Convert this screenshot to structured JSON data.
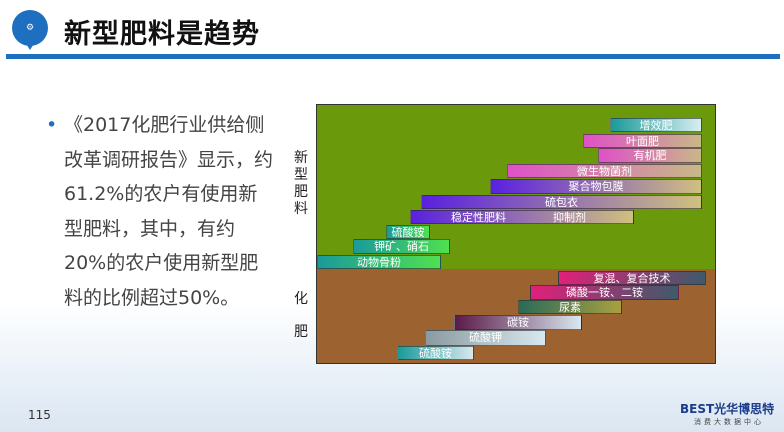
{
  "header": {
    "title": "新型肥料是趋势",
    "logo_text": "⚙"
  },
  "body": {
    "bullet": "《2017化肥行业供给侧改革调研报告》显示，约61.2%的农户有使用新型肥料，其中，有约20%的农户使用新型肥料的比例超过50%。"
  },
  "diagram": {
    "new_label": "新型肥料",
    "old_label_1": "化",
    "old_label_2": "肥",
    "colors": {
      "new_region": "#6a9a0c",
      "old_region": "#9c6330"
    },
    "new_bars": [
      "增效肥",
      "叶面肥",
      "有机肥",
      "微生物菌剂",
      "聚合物包膜",
      "硫包衣",
      "稳定性肥料",
      "抑制剂",
      "硫酸铵",
      "钾矿、硝石",
      "动物骨粉"
    ],
    "old_bars": [
      "复混、复合技术",
      "磷酸一铵、二铵",
      "尿素",
      "碳铵",
      "硫酸钾",
      "硫酸铵"
    ]
  },
  "footer": {
    "page": "115",
    "brand": "BEST光华博思特",
    "brand_sub": "消费大数据中心"
  }
}
